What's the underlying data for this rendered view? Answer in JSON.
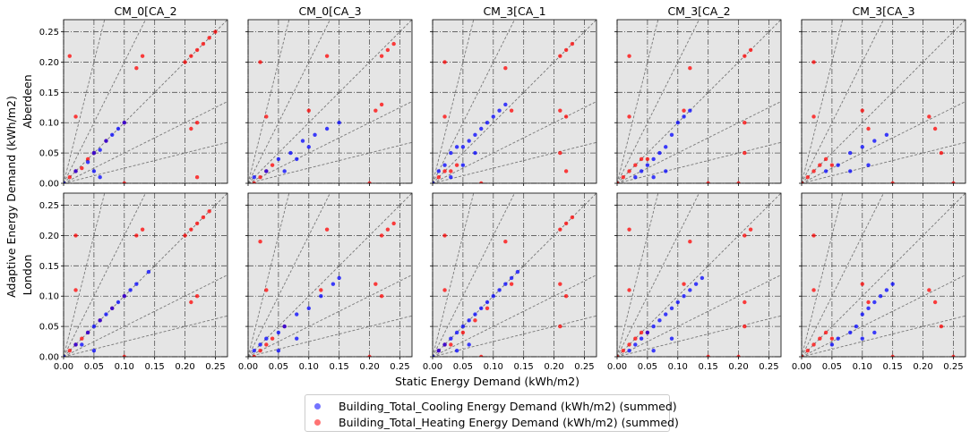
{
  "chart_data": {
    "type": "scatter",
    "xlabel": "Static Energy Demand (kWh/m2)",
    "ylabel": "Adaptive Energy Demand (kWh/m2)",
    "xlim": [
      0,
      0.27
    ],
    "ylim": [
      0,
      0.27
    ],
    "xticks": [
      "0.00",
      "0.05",
      "0.10",
      "0.15",
      "0.20",
      "0.25"
    ],
    "yticks": [
      "0.00",
      "0.05",
      "0.10",
      "0.15",
      "0.20",
      "0.25"
    ],
    "grid": true,
    "background": "#e5e5e5",
    "columns": [
      "CM_0[CA_2",
      "CM_0[CA_3",
      "CM_3[CA_1",
      "CM_3[CA_2",
      "CM_3[CA_3"
    ],
    "rows": [
      "Aberdeen",
      "London"
    ],
    "reference_line_slopes": [
      0.25,
      0.5,
      1,
      2,
      4
    ],
    "series": [
      {
        "name": "Building_Total_Cooling Energy Demand (kWh/m2) (summed)",
        "color": "#0000ff"
      },
      {
        "name": "Building_Total_Heating Energy Demand (kWh/m2) (summed)",
        "color": "#ff0000"
      }
    ],
    "legend_position": "bottom-center",
    "panels": [
      {
        "row": "Aberdeen",
        "column": "CM_0[CA_2",
        "cooling": [
          [
            0.0,
            0.0
          ],
          [
            0.02,
            0.02
          ],
          [
            0.04,
            0.035
          ],
          [
            0.05,
            0.05
          ],
          [
            0.06,
            0.055
          ],
          [
            0.07,
            0.07
          ],
          [
            0.08,
            0.08
          ],
          [
            0.09,
            0.09
          ],
          [
            0.1,
            0.1
          ],
          [
            0.05,
            0.02
          ],
          [
            0.06,
            0.01
          ]
        ],
        "heating": [
          [
            0.01,
            0.01
          ],
          [
            0.02,
            0.02
          ],
          [
            0.03,
            0.025
          ],
          [
            0.04,
            0.04
          ],
          [
            0.05,
            0.05
          ],
          [
            0.07,
            0.07
          ],
          [
            0.1,
            0.1
          ],
          [
            0.2,
            0.2
          ],
          [
            0.21,
            0.21
          ],
          [
            0.22,
            0.22
          ],
          [
            0.23,
            0.23
          ],
          [
            0.24,
            0.24
          ],
          [
            0.25,
            0.25
          ],
          [
            0.22,
            0.1
          ],
          [
            0.21,
            0.09
          ],
          [
            0.13,
            0.21
          ],
          [
            0.12,
            0.19
          ],
          [
            0.01,
            0.21
          ],
          [
            0.02,
            0.11
          ],
          [
            0.1,
            0.0
          ],
          [
            0.22,
            0.01
          ]
        ]
      },
      {
        "row": "Aberdeen",
        "column": "CM_0[CA_3",
        "cooling": [
          [
            0.01,
            0.01
          ],
          [
            0.03,
            0.02
          ],
          [
            0.05,
            0.04
          ],
          [
            0.07,
            0.05
          ],
          [
            0.09,
            0.07
          ],
          [
            0.11,
            0.08
          ],
          [
            0.13,
            0.09
          ],
          [
            0.15,
            0.1
          ],
          [
            0.06,
            0.02
          ],
          [
            0.08,
            0.04
          ],
          [
            0.1,
            0.06
          ]
        ],
        "heating": [
          [
            0.01,
            0.0
          ],
          [
            0.02,
            0.01
          ],
          [
            0.03,
            0.02
          ],
          [
            0.04,
            0.03
          ],
          [
            0.22,
            0.21
          ],
          [
            0.23,
            0.22
          ],
          [
            0.24,
            0.23
          ],
          [
            0.21,
            0.12
          ],
          [
            0.22,
            0.13
          ],
          [
            0.13,
            0.21
          ],
          [
            0.1,
            0.12
          ],
          [
            0.02,
            0.2
          ],
          [
            0.03,
            0.11
          ],
          [
            0.2,
            0.0
          ]
        ]
      },
      {
        "row": "Aberdeen",
        "column": "CM_3[CA_1",
        "cooling": [
          [
            0.0,
            0.0
          ],
          [
            0.01,
            0.02
          ],
          [
            0.02,
            0.03
          ],
          [
            0.03,
            0.05
          ],
          [
            0.04,
            0.06
          ],
          [
            0.05,
            0.06
          ],
          [
            0.06,
            0.07
          ],
          [
            0.07,
            0.08
          ],
          [
            0.08,
            0.09
          ],
          [
            0.09,
            0.1
          ],
          [
            0.1,
            0.11
          ],
          [
            0.11,
            0.12
          ],
          [
            0.12,
            0.13
          ],
          [
            0.03,
            0.01
          ],
          [
            0.05,
            0.03
          ],
          [
            0.07,
            0.05
          ]
        ],
        "heating": [
          [
            0.01,
            0.01
          ],
          [
            0.02,
            0.02
          ],
          [
            0.03,
            0.02
          ],
          [
            0.04,
            0.03
          ],
          [
            0.21,
            0.21
          ],
          [
            0.22,
            0.22
          ],
          [
            0.23,
            0.23
          ],
          [
            0.21,
            0.12
          ],
          [
            0.22,
            0.11
          ],
          [
            0.21,
            0.05
          ],
          [
            0.22,
            0.02
          ],
          [
            0.13,
            0.12
          ],
          [
            0.12,
            0.19
          ],
          [
            0.02,
            0.2
          ],
          [
            0.02,
            0.11
          ],
          [
            0.08,
            0.0
          ]
        ]
      },
      {
        "row": "Aberdeen",
        "column": "CM_3[CA_2",
        "cooling": [
          [
            0.03,
            0.01
          ],
          [
            0.04,
            0.02
          ],
          [
            0.05,
            0.03
          ],
          [
            0.06,
            0.04
          ],
          [
            0.07,
            0.05
          ],
          [
            0.08,
            0.06
          ],
          [
            0.09,
            0.08
          ],
          [
            0.1,
            0.1
          ],
          [
            0.11,
            0.11
          ],
          [
            0.12,
            0.12
          ],
          [
            0.06,
            0.01
          ],
          [
            0.08,
            0.02
          ]
        ],
        "heating": [
          [
            0.0,
            0.0
          ],
          [
            0.01,
            0.01
          ],
          [
            0.02,
            0.02
          ],
          [
            0.03,
            0.03
          ],
          [
            0.04,
            0.04
          ],
          [
            0.05,
            0.04
          ],
          [
            0.21,
            0.21
          ],
          [
            0.22,
            0.22
          ],
          [
            0.21,
            0.1
          ],
          [
            0.21,
            0.05
          ],
          [
            0.12,
            0.19
          ],
          [
            0.11,
            0.12
          ],
          [
            0.02,
            0.21
          ],
          [
            0.02,
            0.11
          ],
          [
            0.15,
            0.0
          ],
          [
            0.2,
            0.0
          ]
        ]
      },
      {
        "row": "Aberdeen",
        "column": "CM_3[CA_3",
        "cooling": [
          [
            0.04,
            0.02
          ],
          [
            0.06,
            0.03
          ],
          [
            0.08,
            0.05
          ],
          [
            0.1,
            0.06
          ],
          [
            0.12,
            0.07
          ],
          [
            0.14,
            0.08
          ],
          [
            0.08,
            0.02
          ],
          [
            0.11,
            0.03
          ]
        ],
        "heating": [
          [
            0.0,
            0.0
          ],
          [
            0.01,
            0.01
          ],
          [
            0.02,
            0.02
          ],
          [
            0.03,
            0.03
          ],
          [
            0.04,
            0.04
          ],
          [
            0.05,
            0.03
          ],
          [
            0.21,
            0.11
          ],
          [
            0.22,
            0.09
          ],
          [
            0.23,
            0.05
          ],
          [
            0.1,
            0.12
          ],
          [
            0.11,
            0.09
          ],
          [
            0.02,
            0.2
          ],
          [
            0.02,
            0.11
          ],
          [
            0.15,
            0.0
          ],
          [
            0.25,
            0.0
          ]
        ]
      },
      {
        "row": "London",
        "column": "CM_0[CA_2",
        "cooling": [
          [
            0.0,
            0.0
          ],
          [
            0.02,
            0.02
          ],
          [
            0.03,
            0.02
          ],
          [
            0.04,
            0.04
          ],
          [
            0.05,
            0.05
          ],
          [
            0.06,
            0.06
          ],
          [
            0.07,
            0.07
          ],
          [
            0.08,
            0.08
          ],
          [
            0.09,
            0.09
          ],
          [
            0.1,
            0.1
          ],
          [
            0.11,
            0.11
          ],
          [
            0.12,
            0.12
          ],
          [
            0.14,
            0.14
          ],
          [
            0.05,
            0.01
          ]
        ],
        "heating": [
          [
            0.01,
            0.01
          ],
          [
            0.02,
            0.02
          ],
          [
            0.03,
            0.03
          ],
          [
            0.04,
            0.04
          ],
          [
            0.06,
            0.06
          ],
          [
            0.08,
            0.08
          ],
          [
            0.1,
            0.1
          ],
          [
            0.2,
            0.2
          ],
          [
            0.21,
            0.21
          ],
          [
            0.22,
            0.22
          ],
          [
            0.23,
            0.23
          ],
          [
            0.24,
            0.24
          ],
          [
            0.22,
            0.1
          ],
          [
            0.21,
            0.09
          ],
          [
            0.13,
            0.21
          ],
          [
            0.12,
            0.2
          ],
          [
            0.02,
            0.2
          ],
          [
            0.02,
            0.11
          ],
          [
            0.1,
            0.0
          ]
        ]
      },
      {
        "row": "London",
        "column": "CM_0[CA_3",
        "cooling": [
          [
            0.01,
            0.01
          ],
          [
            0.02,
            0.02
          ],
          [
            0.03,
            0.03
          ],
          [
            0.05,
            0.04
          ],
          [
            0.06,
            0.05
          ],
          [
            0.08,
            0.07
          ],
          [
            0.1,
            0.08
          ],
          [
            0.12,
            0.1
          ],
          [
            0.14,
            0.12
          ],
          [
            0.15,
            0.13
          ],
          [
            0.05,
            0.01
          ],
          [
            0.08,
            0.03
          ]
        ],
        "heating": [
          [
            0.01,
            0.0
          ],
          [
            0.02,
            0.01
          ],
          [
            0.03,
            0.02
          ],
          [
            0.04,
            0.03
          ],
          [
            0.06,
            0.05
          ],
          [
            0.22,
            0.2
          ],
          [
            0.23,
            0.21
          ],
          [
            0.24,
            0.22
          ],
          [
            0.21,
            0.12
          ],
          [
            0.22,
            0.1
          ],
          [
            0.13,
            0.21
          ],
          [
            0.12,
            0.11
          ],
          [
            0.02,
            0.19
          ],
          [
            0.03,
            0.11
          ],
          [
            0.2,
            0.0
          ]
        ]
      },
      {
        "row": "London",
        "column": "CM_3[CA_1",
        "cooling": [
          [
            0.0,
            0.0
          ],
          [
            0.01,
            0.01
          ],
          [
            0.02,
            0.02
          ],
          [
            0.03,
            0.03
          ],
          [
            0.04,
            0.04
          ],
          [
            0.05,
            0.05
          ],
          [
            0.06,
            0.06
          ],
          [
            0.07,
            0.07
          ],
          [
            0.08,
            0.08
          ],
          [
            0.09,
            0.09
          ],
          [
            0.1,
            0.1
          ],
          [
            0.11,
            0.11
          ],
          [
            0.12,
            0.12
          ],
          [
            0.13,
            0.13
          ],
          [
            0.14,
            0.14
          ],
          [
            0.04,
            0.01
          ],
          [
            0.06,
            0.02
          ]
        ],
        "heating": [
          [
            0.01,
            0.01
          ],
          [
            0.02,
            0.02
          ],
          [
            0.03,
            0.02
          ],
          [
            0.05,
            0.04
          ],
          [
            0.07,
            0.06
          ],
          [
            0.09,
            0.08
          ],
          [
            0.21,
            0.21
          ],
          [
            0.22,
            0.22
          ],
          [
            0.23,
            0.23
          ],
          [
            0.21,
            0.12
          ],
          [
            0.22,
            0.1
          ],
          [
            0.21,
            0.05
          ],
          [
            0.13,
            0.12
          ],
          [
            0.12,
            0.19
          ],
          [
            0.02,
            0.2
          ],
          [
            0.02,
            0.11
          ],
          [
            0.08,
            0.0
          ]
        ]
      },
      {
        "row": "London",
        "column": "CM_3[CA_2",
        "cooling": [
          [
            0.02,
            0.01
          ],
          [
            0.03,
            0.02
          ],
          [
            0.04,
            0.03
          ],
          [
            0.05,
            0.04
          ],
          [
            0.06,
            0.05
          ],
          [
            0.07,
            0.06
          ],
          [
            0.08,
            0.07
          ],
          [
            0.09,
            0.08
          ],
          [
            0.1,
            0.09
          ],
          [
            0.11,
            0.1
          ],
          [
            0.12,
            0.11
          ],
          [
            0.13,
            0.12
          ],
          [
            0.14,
            0.13
          ],
          [
            0.06,
            0.01
          ],
          [
            0.09,
            0.03
          ]
        ],
        "heating": [
          [
            0.0,
            0.0
          ],
          [
            0.01,
            0.01
          ],
          [
            0.02,
            0.02
          ],
          [
            0.03,
            0.03
          ],
          [
            0.04,
            0.04
          ],
          [
            0.05,
            0.04
          ],
          [
            0.21,
            0.2
          ],
          [
            0.22,
            0.21
          ],
          [
            0.21,
            0.09
          ],
          [
            0.21,
            0.05
          ],
          [
            0.12,
            0.19
          ],
          [
            0.11,
            0.12
          ],
          [
            0.02,
            0.21
          ],
          [
            0.02,
            0.11
          ],
          [
            0.15,
            0.0
          ],
          [
            0.2,
            0.0
          ]
        ]
      },
      {
        "row": "London",
        "column": "CM_3[CA_3",
        "cooling": [
          [
            0.05,
            0.02
          ],
          [
            0.06,
            0.03
          ],
          [
            0.08,
            0.04
          ],
          [
            0.09,
            0.05
          ],
          [
            0.1,
            0.07
          ],
          [
            0.11,
            0.08
          ],
          [
            0.12,
            0.09
          ],
          [
            0.13,
            0.1
          ],
          [
            0.14,
            0.11
          ],
          [
            0.15,
            0.12
          ],
          [
            0.1,
            0.03
          ],
          [
            0.12,
            0.04
          ]
        ],
        "heating": [
          [
            0.0,
            0.0
          ],
          [
            0.01,
            0.01
          ],
          [
            0.02,
            0.02
          ],
          [
            0.03,
            0.03
          ],
          [
            0.04,
            0.04
          ],
          [
            0.05,
            0.03
          ],
          [
            0.21,
            0.11
          ],
          [
            0.22,
            0.09
          ],
          [
            0.23,
            0.05
          ],
          [
            0.1,
            0.12
          ],
          [
            0.11,
            0.09
          ],
          [
            0.02,
            0.2
          ],
          [
            0.02,
            0.11
          ],
          [
            0.15,
            0.0
          ],
          [
            0.25,
            0.0
          ]
        ]
      }
    ]
  }
}
